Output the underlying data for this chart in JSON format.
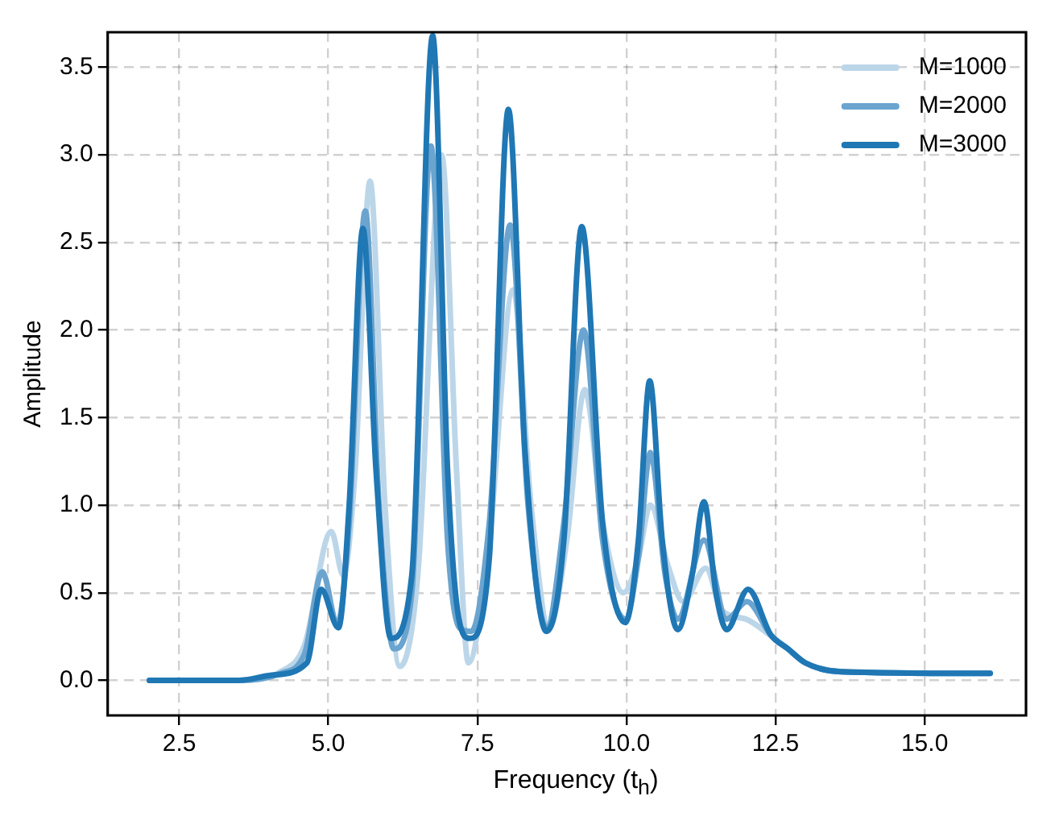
{
  "chart_data": {
    "type": "line",
    "xlabel": "Frequency (t$_{h}$)",
    "ylabel": "Amplitude",
    "xlim": [
      1.3,
      16.7
    ],
    "ylim": [
      -0.2,
      3.7
    ],
    "xticks": [
      {
        "value": 2.5,
        "label": "2.5"
      },
      {
        "value": 5,
        "label": "5.0"
      },
      {
        "value": 7.5,
        "label": "7.5"
      },
      {
        "value": 10,
        "label": "10.0"
      },
      {
        "value": 12.5,
        "label": "12.5"
      },
      {
        "value": 15,
        "label": "15.0"
      }
    ],
    "yticks": [
      {
        "value": 0,
        "label": "0.0"
      },
      {
        "value": 0.5,
        "label": "0.5"
      },
      {
        "value": 1,
        "label": "1.0"
      },
      {
        "value": 1.5,
        "label": "1.5"
      },
      {
        "value": 2,
        "label": "2.0"
      },
      {
        "value": 2.5,
        "label": "2.5"
      },
      {
        "value": 3,
        "label": "3.0"
      },
      {
        "value": 3.5,
        "label": "3.5"
      }
    ],
    "grid": true,
    "legend": "top right",
    "line_style": "solid",
    "marker": "none",
    "series": [
      {
        "name": "M=1000",
        "color": "#bcd6e9",
        "x": [
          2,
          3.5,
          4.2,
          4.6,
          5.05,
          5.25,
          5.45,
          5.7,
          5.95,
          6.2,
          6.5,
          6.9,
          7.15,
          7.35,
          7.7,
          8.1,
          8.4,
          8.7,
          9.0,
          9.3,
          9.6,
          9.95,
          10.2,
          10.4,
          10.7,
          10.95,
          11.33,
          11.6,
          12.0,
          12.4,
          12.7,
          13.0,
          13.6,
          16.1
        ],
        "values": [
          0,
          0,
          0.05,
          0.2,
          0.85,
          0.6,
          1.2,
          2.85,
          1.0,
          0.08,
          0.6,
          3.0,
          1.2,
          0.1,
          0.8,
          2.23,
          1.0,
          0.3,
          0.8,
          1.66,
          0.9,
          0.5,
          0.7,
          1.0,
          0.65,
          0.45,
          0.64,
          0.4,
          0.35,
          0.26,
          0.18,
          0.1,
          0.05,
          0.04
        ]
      },
      {
        "name": "M=2000",
        "color": "#6aa4cf",
        "x": [
          2,
          3.5,
          4.2,
          4.6,
          4.9,
          5.15,
          5.35,
          5.62,
          5.85,
          6.1,
          6.4,
          6.72,
          7.0,
          7.2,
          7.4,
          7.7,
          8.05,
          8.35,
          8.66,
          8.95,
          9.28,
          9.6,
          9.98,
          10.2,
          10.4,
          10.65,
          10.86,
          11.3,
          11.68,
          12.02,
          12.42,
          12.71,
          13.0,
          13.6,
          16.1
        ],
        "values": [
          0,
          0,
          0.04,
          0.15,
          0.62,
          0.32,
          0.9,
          2.68,
          1.0,
          0.18,
          0.5,
          3.05,
          0.8,
          0.3,
          0.28,
          0.9,
          2.6,
          1.0,
          0.3,
          0.9,
          2.0,
          0.8,
          0.35,
          0.7,
          1.3,
          0.6,
          0.35,
          0.8,
          0.35,
          0.45,
          0.26,
          0.18,
          0.1,
          0.05,
          0.04
        ]
      },
      {
        "name": "M=3000",
        "color": "#1f77b4",
        "x": [
          2,
          3.5,
          4.05,
          4.64,
          4.88,
          5.17,
          5.35,
          5.58,
          5.8,
          6.05,
          6.4,
          6.75,
          7.0,
          7.19,
          7.37,
          7.7,
          8.02,
          8.3,
          8.66,
          8.95,
          9.25,
          9.6,
          9.98,
          10.2,
          10.39,
          10.6,
          10.86,
          11.1,
          11.3,
          11.5,
          11.68,
          12.04,
          12.42,
          12.71,
          13.0,
          13.6,
          16.1
        ],
        "values": [
          0,
          0,
          0.03,
          0.1,
          0.52,
          0.3,
          1.0,
          2.58,
          1.2,
          0.24,
          0.6,
          3.68,
          1.2,
          0.35,
          0.24,
          0.7,
          3.26,
          1.3,
          0.28,
          0.8,
          2.59,
          0.9,
          0.33,
          0.8,
          1.71,
          0.8,
          0.29,
          0.6,
          1.02,
          0.5,
          0.29,
          0.52,
          0.26,
          0.18,
          0.1,
          0.05,
          0.04
        ]
      }
    ]
  }
}
